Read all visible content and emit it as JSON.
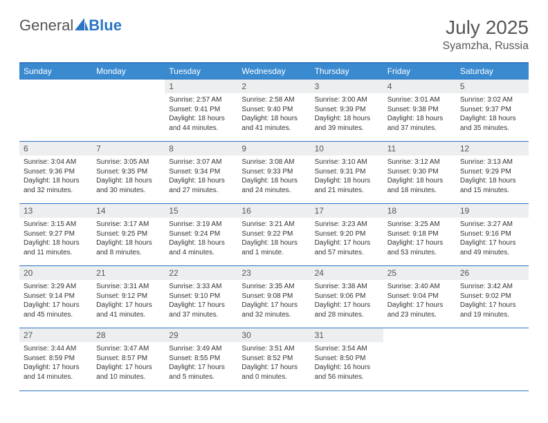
{
  "logo": {
    "part1": "General",
    "part2": "Blue"
  },
  "month_title": "July 2025",
  "location": "Syamzha, Russia",
  "colors": {
    "header_bg": "#3a8ad0",
    "grid_border": "#2a74c2",
    "daynum_bg": "#eceeef",
    "text": "#333333",
    "muted": "#555555",
    "white": "#ffffff"
  },
  "day_headers": [
    "Sunday",
    "Monday",
    "Tuesday",
    "Wednesday",
    "Thursday",
    "Friday",
    "Saturday"
  ],
  "weeks": [
    [
      {
        "n": "",
        "l1": "",
        "l2": "",
        "l3": "",
        "l4": "",
        "empty": true
      },
      {
        "n": "",
        "l1": "",
        "l2": "",
        "l3": "",
        "l4": "",
        "empty": true
      },
      {
        "n": "1",
        "l1": "Sunrise: 2:57 AM",
        "l2": "Sunset: 9:41 PM",
        "l3": "Daylight: 18 hours",
        "l4": "and 44 minutes."
      },
      {
        "n": "2",
        "l1": "Sunrise: 2:58 AM",
        "l2": "Sunset: 9:40 PM",
        "l3": "Daylight: 18 hours",
        "l4": "and 41 minutes."
      },
      {
        "n": "3",
        "l1": "Sunrise: 3:00 AM",
        "l2": "Sunset: 9:39 PM",
        "l3": "Daylight: 18 hours",
        "l4": "and 39 minutes."
      },
      {
        "n": "4",
        "l1": "Sunrise: 3:01 AM",
        "l2": "Sunset: 9:38 PM",
        "l3": "Daylight: 18 hours",
        "l4": "and 37 minutes."
      },
      {
        "n": "5",
        "l1": "Sunrise: 3:02 AM",
        "l2": "Sunset: 9:37 PM",
        "l3": "Daylight: 18 hours",
        "l4": "and 35 minutes."
      }
    ],
    [
      {
        "n": "6",
        "l1": "Sunrise: 3:04 AM",
        "l2": "Sunset: 9:36 PM",
        "l3": "Daylight: 18 hours",
        "l4": "and 32 minutes."
      },
      {
        "n": "7",
        "l1": "Sunrise: 3:05 AM",
        "l2": "Sunset: 9:35 PM",
        "l3": "Daylight: 18 hours",
        "l4": "and 30 minutes."
      },
      {
        "n": "8",
        "l1": "Sunrise: 3:07 AM",
        "l2": "Sunset: 9:34 PM",
        "l3": "Daylight: 18 hours",
        "l4": "and 27 minutes."
      },
      {
        "n": "9",
        "l1": "Sunrise: 3:08 AM",
        "l2": "Sunset: 9:33 PM",
        "l3": "Daylight: 18 hours",
        "l4": "and 24 minutes."
      },
      {
        "n": "10",
        "l1": "Sunrise: 3:10 AM",
        "l2": "Sunset: 9:31 PM",
        "l3": "Daylight: 18 hours",
        "l4": "and 21 minutes."
      },
      {
        "n": "11",
        "l1": "Sunrise: 3:12 AM",
        "l2": "Sunset: 9:30 PM",
        "l3": "Daylight: 18 hours",
        "l4": "and 18 minutes."
      },
      {
        "n": "12",
        "l1": "Sunrise: 3:13 AM",
        "l2": "Sunset: 9:29 PM",
        "l3": "Daylight: 18 hours",
        "l4": "and 15 minutes."
      }
    ],
    [
      {
        "n": "13",
        "l1": "Sunrise: 3:15 AM",
        "l2": "Sunset: 9:27 PM",
        "l3": "Daylight: 18 hours",
        "l4": "and 11 minutes."
      },
      {
        "n": "14",
        "l1": "Sunrise: 3:17 AM",
        "l2": "Sunset: 9:25 PM",
        "l3": "Daylight: 18 hours",
        "l4": "and 8 minutes."
      },
      {
        "n": "15",
        "l1": "Sunrise: 3:19 AM",
        "l2": "Sunset: 9:24 PM",
        "l3": "Daylight: 18 hours",
        "l4": "and 4 minutes."
      },
      {
        "n": "16",
        "l1": "Sunrise: 3:21 AM",
        "l2": "Sunset: 9:22 PM",
        "l3": "Daylight: 18 hours",
        "l4": "and 1 minute."
      },
      {
        "n": "17",
        "l1": "Sunrise: 3:23 AM",
        "l2": "Sunset: 9:20 PM",
        "l3": "Daylight: 17 hours",
        "l4": "and 57 minutes."
      },
      {
        "n": "18",
        "l1": "Sunrise: 3:25 AM",
        "l2": "Sunset: 9:18 PM",
        "l3": "Daylight: 17 hours",
        "l4": "and 53 minutes."
      },
      {
        "n": "19",
        "l1": "Sunrise: 3:27 AM",
        "l2": "Sunset: 9:16 PM",
        "l3": "Daylight: 17 hours",
        "l4": "and 49 minutes."
      }
    ],
    [
      {
        "n": "20",
        "l1": "Sunrise: 3:29 AM",
        "l2": "Sunset: 9:14 PM",
        "l3": "Daylight: 17 hours",
        "l4": "and 45 minutes."
      },
      {
        "n": "21",
        "l1": "Sunrise: 3:31 AM",
        "l2": "Sunset: 9:12 PM",
        "l3": "Daylight: 17 hours",
        "l4": "and 41 minutes."
      },
      {
        "n": "22",
        "l1": "Sunrise: 3:33 AM",
        "l2": "Sunset: 9:10 PM",
        "l3": "Daylight: 17 hours",
        "l4": "and 37 minutes."
      },
      {
        "n": "23",
        "l1": "Sunrise: 3:35 AM",
        "l2": "Sunset: 9:08 PM",
        "l3": "Daylight: 17 hours",
        "l4": "and 32 minutes."
      },
      {
        "n": "24",
        "l1": "Sunrise: 3:38 AM",
        "l2": "Sunset: 9:06 PM",
        "l3": "Daylight: 17 hours",
        "l4": "and 28 minutes."
      },
      {
        "n": "25",
        "l1": "Sunrise: 3:40 AM",
        "l2": "Sunset: 9:04 PM",
        "l3": "Daylight: 17 hours",
        "l4": "and 23 minutes."
      },
      {
        "n": "26",
        "l1": "Sunrise: 3:42 AM",
        "l2": "Sunset: 9:02 PM",
        "l3": "Daylight: 17 hours",
        "l4": "and 19 minutes."
      }
    ],
    [
      {
        "n": "27",
        "l1": "Sunrise: 3:44 AM",
        "l2": "Sunset: 8:59 PM",
        "l3": "Daylight: 17 hours",
        "l4": "and 14 minutes."
      },
      {
        "n": "28",
        "l1": "Sunrise: 3:47 AM",
        "l2": "Sunset: 8:57 PM",
        "l3": "Daylight: 17 hours",
        "l4": "and 10 minutes."
      },
      {
        "n": "29",
        "l1": "Sunrise: 3:49 AM",
        "l2": "Sunset: 8:55 PM",
        "l3": "Daylight: 17 hours",
        "l4": "and 5 minutes."
      },
      {
        "n": "30",
        "l1": "Sunrise: 3:51 AM",
        "l2": "Sunset: 8:52 PM",
        "l3": "Daylight: 17 hours",
        "l4": "and 0 minutes."
      },
      {
        "n": "31",
        "l1": "Sunrise: 3:54 AM",
        "l2": "Sunset: 8:50 PM",
        "l3": "Daylight: 16 hours",
        "l4": "and 56 minutes."
      },
      {
        "n": "",
        "l1": "",
        "l2": "",
        "l3": "",
        "l4": "",
        "empty": true
      },
      {
        "n": "",
        "l1": "",
        "l2": "",
        "l3": "",
        "l4": "",
        "empty": true
      }
    ]
  ]
}
